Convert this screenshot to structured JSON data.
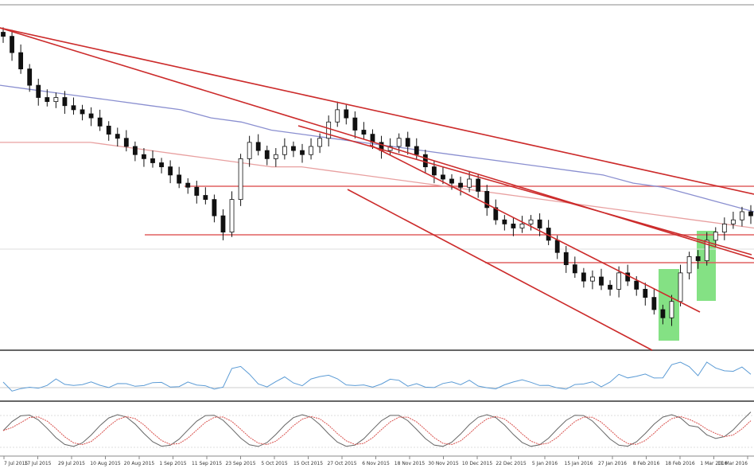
{
  "chart_data": {
    "type": "candlestick",
    "title": "",
    "xlabel": "",
    "ylabel": "",
    "grid": false,
    "x_axis_dates": [
      "7 Jul 2015",
      "17 Jul 2015",
      "29 Jul 2015",
      "10 Aug 2015",
      "20 Aug 2015",
      "1 Sep 2015",
      "11 Sep 2015",
      "23 Sep 2015",
      "5 Oct 2015",
      "15 Oct 2015",
      "27 Oct 2015",
      "6 Nov 2015",
      "18 Nov 2015",
      "30 Nov 2015",
      "10 Dec 2015",
      "22 Dec 2015",
      "5 Jan 2016",
      "15 Jan 2016",
      "27 Jan 2016",
      "8 Feb 2016",
      "18 Feb 2016",
      "1 Mar 2016",
      "11 Mar 2016"
    ],
    "price_closes": [
      100,
      96,
      92,
      88,
      85,
      84,
      85,
      83,
      82,
      81,
      80,
      78,
      76,
      75,
      73,
      71,
      70,
      69,
      68,
      66,
      64,
      63,
      61,
      60,
      56,
      52,
      60,
      70,
      74,
      72,
      70,
      71,
      73,
      72,
      71,
      73,
      75,
      79,
      82,
      80,
      77,
      76,
      74,
      72,
      73,
      75,
      73,
      71,
      68,
      66,
      65,
      64,
      63,
      65,
      62,
      58,
      55,
      54,
      53,
      54,
      55,
      53,
      50,
      47,
      44,
      42,
      40,
      41,
      39,
      38,
      42,
      40,
      38,
      36,
      33,
      31,
      35,
      42,
      46,
      45,
      50,
      52,
      54,
      55,
      57,
      56
    ],
    "moving_averages": [
      {
        "color": "#8a8fd0",
        "values": [
          88,
          87,
          86,
          85,
          84,
          83,
          82,
          80,
          79,
          77,
          76,
          75,
          74,
          73,
          72,
          71,
          70,
          69,
          68,
          67,
          66,
          64,
          63,
          61,
          59,
          57
        ]
      },
      {
        "color": "#e8a0a0",
        "values": [
          74,
          74,
          74,
          74,
          73,
          72,
          71,
          70,
          69,
          68,
          68,
          67,
          66,
          65,
          64,
          63,
          62,
          61,
          60,
          59,
          58,
          57,
          56,
          55,
          54,
          53
        ]
      }
    ],
    "trendlines": [
      "red descending trendline",
      "red descending channel",
      "red horizontal support/resistance levels"
    ],
    "highlight_color": "#6fdc6f",
    "indicators": [
      {
        "name": "",
        "type": "line",
        "color": "#5b9bd5"
      },
      {
        "name": "",
        "type": "stochastic",
        "colors": [
          "#666666",
          "#d9534f"
        ]
      }
    ]
  }
}
